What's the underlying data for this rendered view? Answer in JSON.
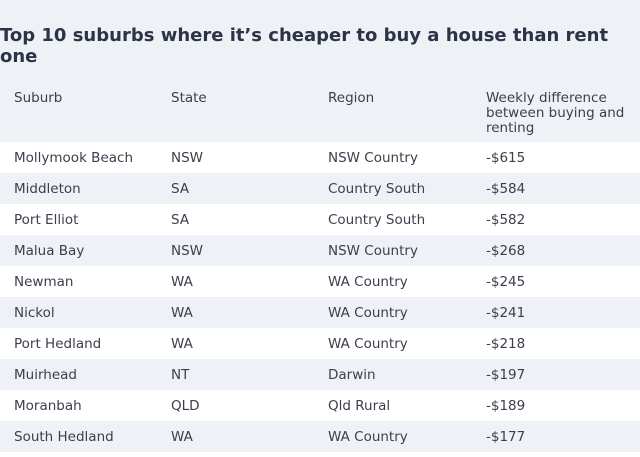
{
  "chart_data": {
    "type": "table",
    "title": "Top 10 suburbs where it’s cheaper to buy a house than rent one",
    "columns": [
      "Suburb",
      "State",
      "Region",
      "Weekly difference between buying and renting"
    ],
    "rows": [
      [
        "Mollymook Beach",
        "NSW",
        "NSW Country",
        "-$615"
      ],
      [
        "Middleton",
        "SA",
        "Country South",
        "-$584"
      ],
      [
        "Port Elliot",
        "SA",
        "Country South",
        "-$582"
      ],
      [
        "Malua Bay",
        "NSW",
        "NSW Country",
        "-$268"
      ],
      [
        "Newman",
        "WA",
        "WA Country",
        "-$245"
      ],
      [
        "Nickol",
        "WA",
        "WA Country",
        "-$241"
      ],
      [
        "Port Hedland",
        "WA",
        "WA Country",
        "-$218"
      ],
      [
        "Muirhead",
        "NT",
        "Darwin",
        "-$197"
      ],
      [
        "Moranbah",
        "QLD",
        "Qld Rural",
        "-$189"
      ],
      [
        "South Hedland",
        "WA",
        "WA Country",
        "-$177"
      ]
    ]
  }
}
